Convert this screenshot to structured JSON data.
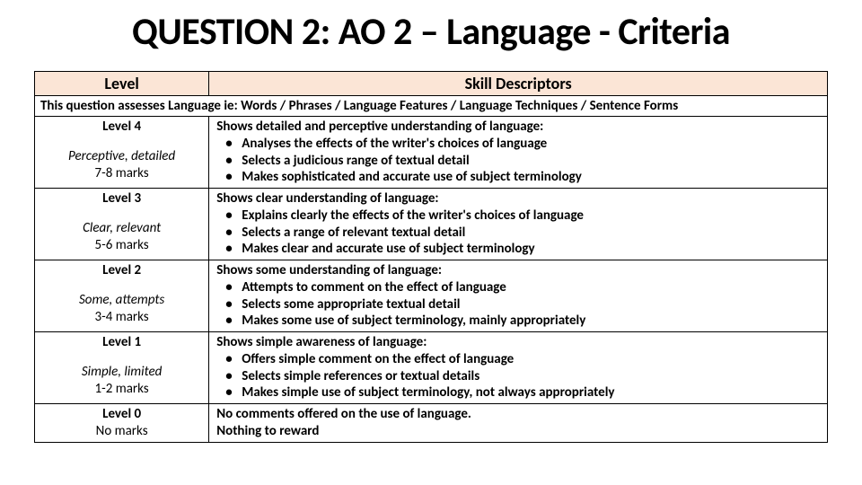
{
  "title": "QUESTION 2: AO 2 – Language - Criteria",
  "headers": {
    "level": "Level",
    "skill": "Skill Descriptors"
  },
  "assess_note": "This question assesses Language ie: Words / Phrases / Language Features / Language Techniques / Sentence Forms",
  "rows": [
    {
      "level_name": "Level 4",
      "level_desc": "Perceptive, detailed",
      "level_marks": "7-8 marks",
      "intro": "Shows detailed and perceptive understanding of language:",
      "bullets": [
        "Analyses the effects of the writer's choices of language",
        "Selects a judicious range of textual detail",
        "Makes sophisticated and accurate use of subject terminology"
      ]
    },
    {
      "level_name": "Level 3",
      "level_desc": "Clear, relevant",
      "level_marks": "5-6 marks",
      "intro": "Shows clear understanding of language:",
      "bullets": [
        "Explains clearly the effects of the writer's choices of language",
        "Selects a range of relevant textual detail",
        "Makes clear and accurate use of subject terminology"
      ]
    },
    {
      "level_name": "Level 2",
      "level_desc": "Some, attempts",
      "level_marks": "3-4 marks",
      "intro": "Shows some understanding of language:",
      "bullets": [
        "Attempts to comment on the effect of language",
        "Selects some appropriate textual detail",
        "Makes some use of subject terminology, mainly appropriately"
      ]
    },
    {
      "level_name": "Level 1",
      "level_desc": "Simple, limited",
      "level_marks": "1-2 marks",
      "intro": "Shows simple awareness of language:",
      "bullets": [
        "Offers simple comment on the effect of language",
        "Selects simple references or textual details",
        "Makes simple use of subject terminology, not always appropriately"
      ]
    },
    {
      "level_name": "Level 0",
      "level_desc": "",
      "level_marks": "No marks",
      "intro": "No comments offered on the use of language.",
      "bullets": [],
      "extra": "Nothing to reward"
    }
  ],
  "styles": {
    "header_bg": "#fbe5d6",
    "border_color": "#000000",
    "title_fontsize": 42,
    "body_fontsize": 15,
    "header_fontsize": 18,
    "background": "#ffffff"
  }
}
